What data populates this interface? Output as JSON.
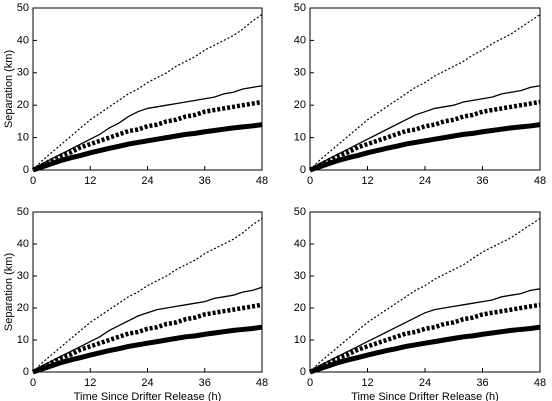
{
  "chart_data": [
    {
      "type": "line",
      "ylabel": "Separation (km)",
      "x": [
        0,
        2,
        4,
        6,
        8,
        10,
        12,
        14,
        16,
        18,
        20,
        22,
        24,
        26,
        28,
        30,
        32,
        34,
        36,
        38,
        40,
        42,
        44,
        46,
        48
      ],
      "xlim": [
        0,
        48
      ],
      "xticks": [
        0,
        12,
        24,
        36,
        48
      ],
      "ylim": [
        0,
        50
      ],
      "yticks": [
        0,
        10,
        20,
        30,
        40,
        50
      ],
      "series": [
        {
          "color": "#000000",
          "style": "dotted",
          "values": [
            0,
            3,
            5.5,
            8,
            10.5,
            13,
            15.5,
            17.5,
            19.5,
            21.5,
            23.5,
            25,
            27,
            28.5,
            30,
            32,
            33.5,
            35,
            37,
            38.5,
            40,
            41.5,
            43.5,
            46,
            48
          ]
        },
        {
          "color": "#000000",
          "style": "solid",
          "values": [
            0,
            2,
            3.5,
            5,
            6.5,
            8,
            9.5,
            11,
            13,
            14.5,
            16.5,
            18,
            19,
            19.5,
            20,
            20.5,
            21,
            21.5,
            22,
            22.5,
            23.5,
            24,
            25,
            25.5,
            26
          ]
        },
        {
          "color": "#000000",
          "style": "thick-dashed",
          "values": [
            0,
            1.5,
            3,
            4.5,
            5.5,
            7,
            8,
            9,
            10,
            11,
            12,
            12.5,
            13.5,
            14,
            15,
            15.5,
            16.5,
            17,
            18,
            18.5,
            19,
            19.5,
            20,
            20.5,
            21
          ]
        },
        {
          "color": "#000000",
          "style": "thick-solid",
          "values": [
            0,
            1,
            2,
            3,
            3.8,
            4.5,
            5.3,
            6,
            6.7,
            7.3,
            8,
            8.5,
            9,
            9.5,
            10,
            10.5,
            11,
            11.3,
            11.8,
            12.2,
            12.6,
            13,
            13.3,
            13.6,
            14
          ]
        }
      ]
    },
    {
      "type": "line",
      "x": [
        0,
        2,
        4,
        6,
        8,
        10,
        12,
        14,
        16,
        18,
        20,
        22,
        24,
        26,
        28,
        30,
        32,
        34,
        36,
        38,
        40,
        42,
        44,
        46,
        48
      ],
      "xlim": [
        0,
        48
      ],
      "xticks": [
        0,
        12,
        24,
        36,
        48
      ],
      "ylim": [
        0,
        50
      ],
      "yticks": [
        0,
        10,
        20,
        30,
        40,
        50
      ],
      "series": [
        {
          "color": "#000000",
          "style": "dotted",
          "values": [
            0,
            3,
            5.5,
            8,
            10.5,
            13,
            15.5,
            17.5,
            19.5,
            21.5,
            23.5,
            25.5,
            27,
            29,
            30.5,
            32,
            33.5,
            35.5,
            37,
            39,
            40.5,
            42,
            44,
            46,
            48
          ]
        },
        {
          "color": "#000000",
          "style": "solid",
          "values": [
            0,
            2,
            3.5,
            5,
            6.5,
            8,
            9.5,
            11,
            12.5,
            14,
            15.5,
            17,
            18,
            19,
            19.5,
            20,
            21,
            21.5,
            22,
            22.5,
            23.5,
            24,
            24.5,
            25.5,
            26
          ]
        },
        {
          "color": "#000000",
          "style": "thick-dashed",
          "values": [
            0,
            1.5,
            3,
            4.5,
            5.5,
            7,
            8,
            9,
            10,
            11,
            12,
            12.5,
            13.5,
            14,
            15,
            15.5,
            16.5,
            17,
            18,
            18.5,
            19,
            19.5,
            20,
            20.5,
            21
          ]
        },
        {
          "color": "#000000",
          "style": "thick-solid",
          "values": [
            0,
            1,
            2,
            3,
            3.8,
            4.5,
            5.3,
            6,
            6.7,
            7.3,
            8,
            8.5,
            9,
            9.5,
            10,
            10.5,
            11,
            11.3,
            11.8,
            12.2,
            12.6,
            13,
            13.3,
            13.6,
            14
          ]
        }
      ]
    },
    {
      "type": "line",
      "ylabel": "Separation (km)",
      "xlabel": "Time Since Drifter Release (h)",
      "x": [
        0,
        2,
        4,
        6,
        8,
        10,
        12,
        14,
        16,
        18,
        20,
        22,
        24,
        26,
        28,
        30,
        32,
        34,
        36,
        38,
        40,
        42,
        44,
        46,
        48
      ],
      "xlim": [
        0,
        48
      ],
      "xticks": [
        0,
        12,
        24,
        36,
        48
      ],
      "ylim": [
        0,
        50
      ],
      "yticks": [
        0,
        10,
        20,
        30,
        40,
        50
      ],
      "series": [
        {
          "color": "#000000",
          "style": "dotted",
          "values": [
            0,
            3,
            5.5,
            8,
            10.5,
            13,
            15.5,
            17.5,
            19.5,
            21.5,
            23.5,
            25,
            27,
            28.5,
            30,
            32,
            33.5,
            35,
            37,
            38.5,
            40,
            41.5,
            43.5,
            46,
            48
          ]
        },
        {
          "color": "#000000",
          "style": "solid",
          "values": [
            0,
            2,
            3.5,
            5,
            6.5,
            8,
            9.5,
            11,
            13,
            14.5,
            16,
            17.5,
            18.5,
            19.5,
            20,
            20.5,
            21,
            21.5,
            22,
            23,
            23.5,
            24,
            25,
            25.5,
            26.5
          ]
        },
        {
          "color": "#000000",
          "style": "thick-dashed",
          "values": [
            0,
            1.5,
            3,
            4.5,
            5.5,
            7,
            8,
            9,
            10,
            11,
            12,
            12.5,
            13.5,
            14,
            15,
            15.5,
            16.5,
            17,
            18,
            18.5,
            19,
            19.5,
            20,
            20.5,
            21
          ]
        },
        {
          "color": "#000000",
          "style": "thick-solid",
          "values": [
            0,
            1,
            2,
            3,
            3.8,
            4.5,
            5.3,
            6,
            6.7,
            7.3,
            8,
            8.5,
            9,
            9.5,
            10,
            10.5,
            11,
            11.3,
            11.8,
            12.2,
            12.6,
            13,
            13.3,
            13.6,
            14
          ]
        }
      ]
    },
    {
      "type": "line",
      "xlabel": "Time Since Drifter Release (h)",
      "x": [
        0,
        2,
        4,
        6,
        8,
        10,
        12,
        14,
        16,
        18,
        20,
        22,
        24,
        26,
        28,
        30,
        32,
        34,
        36,
        38,
        40,
        42,
        44,
        46,
        48
      ],
      "xlim": [
        0,
        48
      ],
      "xticks": [
        0,
        12,
        24,
        36,
        48
      ],
      "ylim": [
        0,
        50
      ],
      "yticks": [
        0,
        10,
        20,
        30,
        40,
        50
      ],
      "series": [
        {
          "color": "#000000",
          "style": "dotted",
          "values": [
            0,
            3,
            5.5,
            8,
            10.5,
            13,
            15.5,
            17.5,
            19.5,
            21.5,
            23.5,
            25.5,
            27,
            29,
            30.5,
            32,
            33.5,
            35.5,
            37.5,
            39,
            40.5,
            42,
            44,
            46,
            48
          ]
        },
        {
          "color": "#000000",
          "style": "solid",
          "values": [
            0,
            2,
            3.5,
            5,
            6.5,
            8,
            9.5,
            11,
            12.5,
            14,
            15.5,
            17,
            18.5,
            19.5,
            20,
            20.5,
            21,
            21.5,
            22,
            22.5,
            23.5,
            24,
            24.5,
            25.5,
            26
          ]
        },
        {
          "color": "#000000",
          "style": "thick-dashed",
          "values": [
            0,
            1.5,
            3,
            4.5,
            5.5,
            7,
            8,
            9,
            10,
            11,
            12,
            12.5,
            13.5,
            14,
            15,
            15.5,
            16.5,
            17,
            18,
            18.5,
            19,
            19.5,
            20,
            20.5,
            21
          ]
        },
        {
          "color": "#000000",
          "style": "thick-solid",
          "values": [
            0,
            1,
            2,
            3,
            3.8,
            4.5,
            5.3,
            6,
            6.7,
            7.3,
            8,
            8.5,
            9,
            9.5,
            10,
            10.5,
            11,
            11.3,
            11.8,
            12.2,
            12.6,
            13,
            13.3,
            13.6,
            14
          ]
        }
      ]
    }
  ]
}
